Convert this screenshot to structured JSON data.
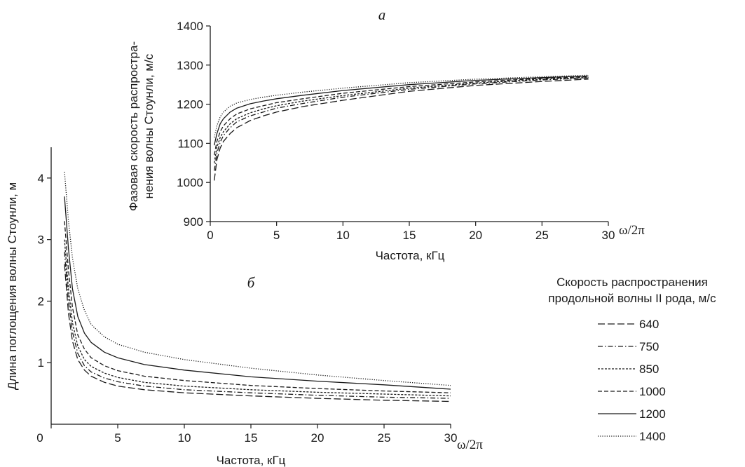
{
  "chart_data": [
    {
      "type": "line",
      "panel_label": "а",
      "x_unit_label": "ω/2π",
      "xlabel": "Частота, кГц",
      "ylabel": [
        "Фазовая скорость распростра-",
        "нения волны Стоунли, м/с"
      ],
      "xlim": [
        0,
        30
      ],
      "ylim": [
        900,
        1400
      ],
      "x_ticks": [
        "0",
        "5",
        "10",
        "15",
        "20",
        "25",
        "30"
      ],
      "y_ticks": [
        "900",
        "1000",
        "1100",
        "1200",
        "1300",
        "1400"
      ],
      "x": [
        0.3,
        0.5,
        0.75,
        1,
        1.5,
        2,
        3,
        4,
        5,
        7,
        10,
        15,
        20,
        25,
        28.5
      ],
      "series": [
        {
          "name": "640",
          "color": "#1a1a1a",
          "dash": "10,4",
          "values": [
            1005,
            1058,
            1088,
            1105,
            1125,
            1140,
            1158,
            1170,
            1180,
            1194,
            1210,
            1233,
            1248,
            1258,
            1264
          ]
        },
        {
          "name": "750",
          "color": "#1a1a1a",
          "dash": "7,3,1.5,3",
          "values": [
            1030,
            1075,
            1103,
            1120,
            1140,
            1155,
            1170,
            1180,
            1190,
            1202,
            1218,
            1238,
            1252,
            1262,
            1267
          ]
        },
        {
          "name": "850",
          "color": "#1a1a1a",
          "dash": "3,2",
          "values": [
            1050,
            1090,
            1115,
            1130,
            1150,
            1163,
            1178,
            1188,
            1196,
            1208,
            1222,
            1241,
            1254,
            1264,
            1268
          ]
        },
        {
          "name": "1000",
          "color": "#1a1a1a",
          "dash": "6,3",
          "values": [
            1070,
            1105,
            1130,
            1145,
            1163,
            1175,
            1188,
            1196,
            1204,
            1214,
            1228,
            1245,
            1257,
            1266,
            1270
          ]
        },
        {
          "name": "1200",
          "color": "#1a1a1a",
          "dash": "",
          "values": [
            1095,
            1125,
            1150,
            1163,
            1180,
            1190,
            1201,
            1208,
            1214,
            1223,
            1235,
            1250,
            1261,
            1268,
            1272
          ]
        },
        {
          "name": "1400",
          "color": "#1a1a1a",
          "dash": "1.2,2",
          "values": [
            1115,
            1145,
            1168,
            1180,
            1195,
            1203,
            1212,
            1218,
            1223,
            1231,
            1241,
            1255,
            1264,
            1270,
            1274
          ]
        }
      ]
    },
    {
      "type": "line",
      "panel_label": "б",
      "x_unit_label": "ω/2π",
      "xlabel": "Частота, кГц",
      "ylabel": "Длина поглощения волны Стоунли, м",
      "xlim": [
        0,
        30
      ],
      "ylim": [
        0,
        4.5
      ],
      "x_ticks": [
        "0",
        "5",
        "10",
        "15",
        "20",
        "25",
        "30"
      ],
      "y_ticks": [
        "1",
        "2",
        "3",
        "4"
      ],
      "x": [
        1,
        1.3,
        1.6,
        2,
        2.5,
        3,
        4,
        5,
        7,
        10,
        15,
        20,
        25,
        30
      ],
      "series": [
        {
          "name": "640",
          "color": "#1a1a1a",
          "dash": "10,4",
          "values": [
            2.6,
            1.8,
            1.35,
            1.05,
            0.88,
            0.78,
            0.68,
            0.62,
            0.56,
            0.51,
            0.46,
            0.42,
            0.39,
            0.37
          ]
        },
        {
          "name": "750",
          "color": "#1a1a1a",
          "dash": "7,3,1.5,3",
          "values": [
            2.8,
            2.0,
            1.5,
            1.15,
            0.95,
            0.85,
            0.75,
            0.69,
            0.62,
            0.56,
            0.51,
            0.47,
            0.44,
            0.42
          ]
        },
        {
          "name": "850",
          "color": "#1a1a1a",
          "dash": "3,2",
          "values": [
            3.0,
            2.2,
            1.65,
            1.27,
            1.05,
            0.94,
            0.83,
            0.76,
            0.68,
            0.62,
            0.56,
            0.52,
            0.49,
            0.46
          ]
        },
        {
          "name": "1000",
          "color": "#1a1a1a",
          "dash": "6,3",
          "values": [
            3.3,
            2.5,
            1.9,
            1.45,
            1.22,
            1.08,
            0.95,
            0.87,
            0.78,
            0.71,
            0.63,
            0.58,
            0.54,
            0.51
          ]
        },
        {
          "name": "1200",
          "color": "#1a1a1a",
          "dash": "",
          "values": [
            3.7,
            2.85,
            2.2,
            1.75,
            1.48,
            1.33,
            1.17,
            1.08,
            0.97,
            0.88,
            0.77,
            0.7,
            0.64,
            0.57
          ]
        },
        {
          "name": "1400",
          "color": "#1a1a1a",
          "dash": "1.2,2",
          "values": [
            4.1,
            3.3,
            2.7,
            2.2,
            1.85,
            1.62,
            1.42,
            1.3,
            1.17,
            1.05,
            0.91,
            0.8,
            0.71,
            0.63
          ]
        }
      ]
    }
  ],
  "legend": {
    "title_line1": "Скорость распространения",
    "title_line2": "продольной волны II рода, м/с",
    "items": [
      "640",
      "750",
      "850",
      "1000",
      "1200",
      "1400"
    ]
  }
}
